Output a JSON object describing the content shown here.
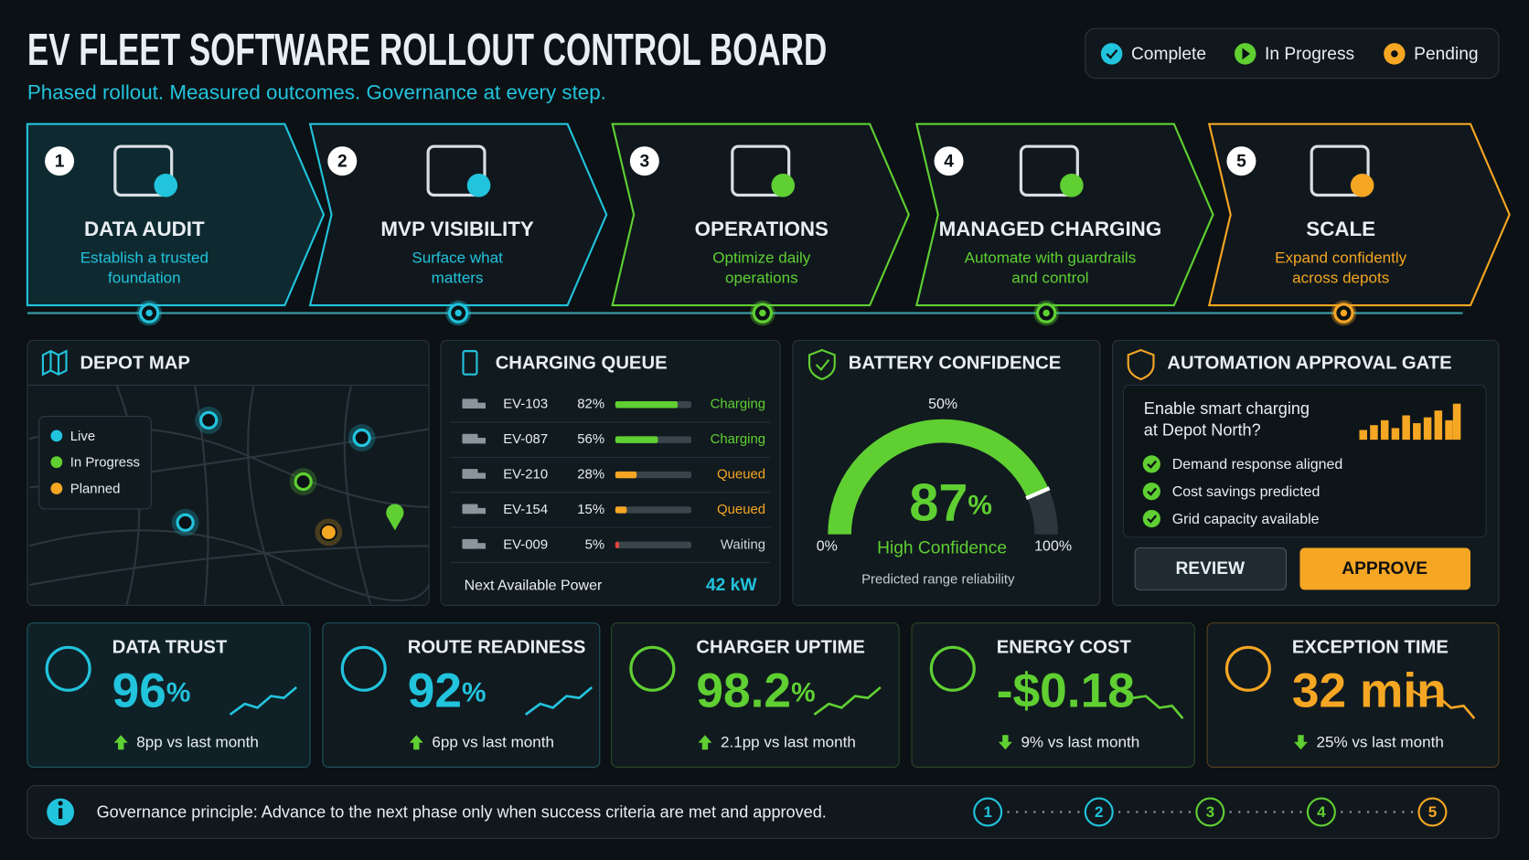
{
  "header": {
    "title": "EV FLEET SOFTWARE ROLLOUT CONTROL BOARD",
    "subtitle": "Phased rollout. Measured outcomes. Governance at every step."
  },
  "legend": [
    {
      "label": "Complete",
      "color": "#22c3dc"
    },
    {
      "label": "In Progress",
      "color": "#5fcf32"
    },
    {
      "label": "Pending",
      "color": "#f5a623"
    }
  ],
  "phases": [
    {
      "number": "1",
      "title": "DATA AUDIT",
      "lines": [
        "Establish a trusted",
        "foundation"
      ],
      "color": "#22c3dc"
    },
    {
      "number": "2",
      "title": "MVP VISIBILITY",
      "lines": [
        "Surface what",
        "matters"
      ],
      "color": "#22c3dc"
    },
    {
      "number": "3",
      "title": "OPERATIONS",
      "lines": [
        "Optimize daily",
        "operations"
      ],
      "color": "#5fcf32"
    },
    {
      "number": "4",
      "title": "MANAGED CHARGING",
      "lines": [
        "Automate with guardrails",
        "and control"
      ],
      "color": "#5fcf32"
    },
    {
      "number": "5",
      "title": "SCALE",
      "lines": [
        "Expand confidently",
        "across depots"
      ],
      "color": "#f5a623"
    }
  ],
  "depot_map": {
    "title": "DEPOT MAP",
    "legend": [
      {
        "label": "Live",
        "color": "#22c3dc"
      },
      {
        "label": "In Progress",
        "color": "#5fcf32"
      },
      {
        "label": "Planned",
        "color": "#f5a623"
      }
    ]
  },
  "charging_queue": {
    "title": "CHARGING QUEUE",
    "rows": [
      {
        "vehicle": "EV-103",
        "charge": {
          "value": 82,
          "label": "82%"
        },
        "status": "Charging",
        "color": "#5fcf32"
      },
      {
        "vehicle": "EV-087",
        "charge": {
          "value": 56,
          "label": "56%"
        },
        "status": "Charging",
        "color": "#5fcf32"
      },
      {
        "vehicle": "EV-210",
        "charge": {
          "value": 28,
          "label": "28%"
        },
        "status": "Queued",
        "color": "#f5a623"
      },
      {
        "vehicle": "EV-154",
        "charge": {
          "value": 15,
          "label": "15%"
        },
        "status": "Queued",
        "color": "#f5a623"
      },
      {
        "vehicle": "EV-009",
        "charge": {
          "value": 5,
          "label": "5%"
        },
        "status": "Waiting",
        "color": "#e0453a"
      }
    ],
    "footer_label": "Next Available Power",
    "footer_value": "42 kW"
  },
  "battery_confidence": {
    "title": "BATTERY CONFIDENCE",
    "gauge": {
      "value": 87,
      "unit": "%",
      "min": {
        "value": 0,
        "label": "0%"
      },
      "mid": {
        "value": 50,
        "label": "50%"
      },
      "max": {
        "value": 100,
        "label": "100%"
      }
    },
    "status": "High Confidence",
    "caption": "Predicted range reliability"
  },
  "approval_gate": {
    "title": "AUTOMATION APPROVAL GATE",
    "question": [
      "Enable smart charging",
      "at Depot North?"
    ],
    "checks": [
      "Demand response aligned",
      "Cost savings predicted",
      "Grid capacity available"
    ],
    "buttons": [
      "REVIEW",
      "APPROVE"
    ]
  },
  "kpis": [
    {
      "title": "DATA TRUST",
      "value": "96",
      "unit": "%",
      "delta": "8pp vs last month",
      "direction": "up",
      "color": "#22c3dc"
    },
    {
      "title": "ROUTE READINESS",
      "value": "92",
      "unit": "%",
      "delta": "6pp vs last month",
      "direction": "up",
      "color": "#22c3dc"
    },
    {
      "title": "CHARGER UPTIME",
      "value": "98.2",
      "unit": "%",
      "delta": "2.1pp vs last month",
      "direction": "up",
      "color": "#5fcf32"
    },
    {
      "title": "ENERGY COST",
      "value": "-$0.18",
      "delta": "9% vs last month",
      "direction": "down",
      "color": "#5fcf32"
    },
    {
      "title": "EXCEPTION TIME",
      "value": "32 min",
      "delta": "25% vs last month",
      "direction": "down",
      "color": "#f5a623"
    }
  ],
  "footer": {
    "text": "Governance principle: Advance to the next phase only when success criteria are met and approved.",
    "steps": [
      "1",
      "2",
      "3",
      "4",
      "5"
    ]
  }
}
